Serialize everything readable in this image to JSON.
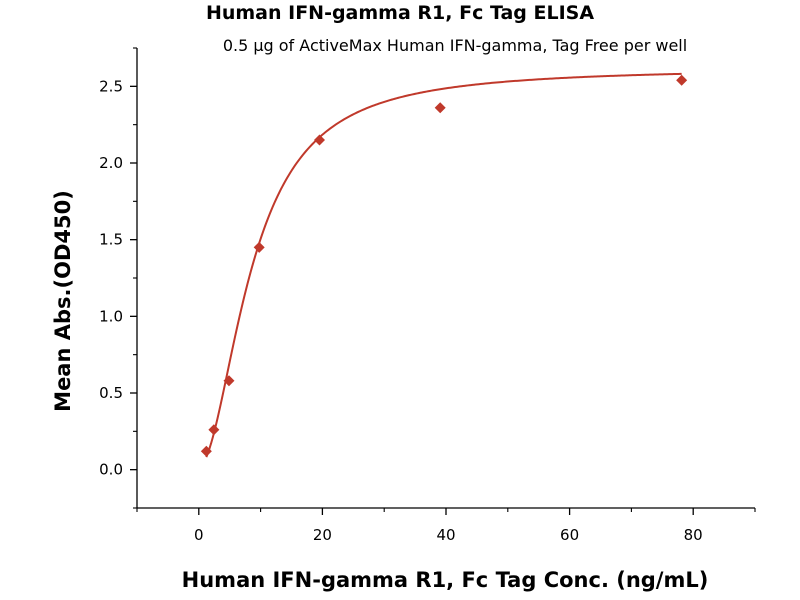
{
  "chart_data": {
    "type": "scatter",
    "title": "Human IFN-gamma R1, Fc Tag ELISA",
    "subtitle": "0.5 µg of ActiveMax Human IFN-gamma, Tag Free per well",
    "xlabel": "Human IFN-gamma R1, Fc Tag Conc. (ng/mL)",
    "ylabel": "Mean Abs.(OD450)",
    "xlim": [
      -10,
      90
    ],
    "ylim": [
      -0.25,
      2.75
    ],
    "x_ticks": [
      0,
      20,
      40,
      60,
      80
    ],
    "y_ticks": [
      0.0,
      0.5,
      1.0,
      1.5,
      2.0,
      2.5
    ],
    "x_tick_labels": [
      "0",
      "20",
      "40",
      "60",
      "80"
    ],
    "y_tick_labels": [
      "0.0",
      "0.5",
      "1.0",
      "1.5",
      "2.0",
      "2.5"
    ],
    "grid": false,
    "series": [
      {
        "x": [
          1.22,
          2.44,
          4.88,
          9.77,
          19.53,
          39.06,
          78.13
        ],
        "y": [
          0.12,
          0.26,
          0.58,
          1.45,
          2.15,
          2.36,
          2.54
        ]
      }
    ],
    "fit_curve": true,
    "colors": {
      "marker": "#c0392b",
      "curve": "#c0392b",
      "axis": "#000000"
    }
  }
}
